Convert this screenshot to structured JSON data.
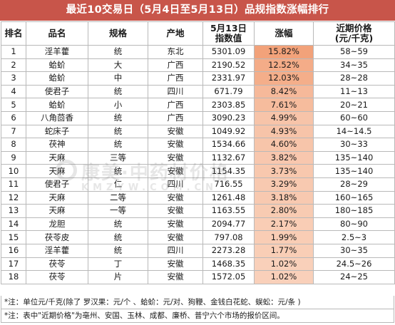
{
  "title": "最近10交易日（5月4日至5月13日）品规指数涨幅排行",
  "columns": {
    "rank": "排名",
    "name": "品名",
    "spec": "规格",
    "origin": "产地",
    "index_line1": "5月13日",
    "index_line2": "指数值",
    "change": "涨幅",
    "price_line1": "近期价格",
    "price_line2": "(元/千克)"
  },
  "rows": [
    {
      "rank": "1",
      "name": "淫羊藿",
      "spec": "统",
      "origin": "东北",
      "index": "5301.09",
      "change": "15.82%",
      "price": "58~59",
      "change_value": 15.82
    },
    {
      "rank": "2",
      "name": "蛤蚧",
      "spec": "大",
      "origin": "广西",
      "index": "2190.52",
      "change": "12.52%",
      "price": "34~35",
      "change_value": 12.52
    },
    {
      "rank": "3",
      "name": "蛤蚧",
      "spec": "中",
      "origin": "广西",
      "index": "2331.97",
      "change": "12.03%",
      "price": "28~28",
      "change_value": 12.03
    },
    {
      "rank": "4",
      "name": "使君子",
      "spec": "统",
      "origin": "四川",
      "index": "671.79",
      "change": "8.42%",
      "price": "11~13",
      "change_value": 8.42
    },
    {
      "rank": "5",
      "name": "蛤蚧",
      "spec": "小",
      "origin": "广西",
      "index": "2303.85",
      "change": "7.61%",
      "price": "20~21",
      "change_value": 7.61
    },
    {
      "rank": "6",
      "name": "八角茴香",
      "spec": "统",
      "origin": "广西",
      "index": "3090.23",
      "change": "4.99%",
      "price": "60~60",
      "change_value": 4.99
    },
    {
      "rank": "7",
      "name": "蛇床子",
      "spec": "统",
      "origin": "安徽",
      "index": "1049.92",
      "change": "4.93%",
      "price": "14~14.5",
      "change_value": 4.93
    },
    {
      "rank": "8",
      "name": "茯神",
      "spec": "统",
      "origin": "安徽",
      "index": "1534.66",
      "change": "4.60%",
      "price": "30~33",
      "change_value": 4.6
    },
    {
      "rank": "9",
      "name": "天麻",
      "spec": "三等",
      "origin": "安徽",
      "index": "1132.67",
      "change": "3.82%",
      "price": "135~140",
      "change_value": 3.82
    },
    {
      "rank": "10",
      "name": "天麻",
      "spec": "统",
      "origin": "安徽",
      "index": "1154.35",
      "change": "3.73%",
      "price": "135~140",
      "change_value": 3.73
    },
    {
      "rank": "11",
      "name": "使君子",
      "spec": "仁",
      "origin": "四川",
      "index": "716.55",
      "change": "3.29%",
      "price": "28~29",
      "change_value": 3.29
    },
    {
      "rank": "12",
      "name": "天麻",
      "spec": "二等",
      "origin": "安徽",
      "index": "1261.48",
      "change": "3.18%",
      "price": "160~165",
      "change_value": 3.18
    },
    {
      "rank": "13",
      "name": "天麻",
      "spec": "一等",
      "origin": "安徽",
      "index": "1163.55",
      "change": "2.80%",
      "price": "180~185",
      "change_value": 2.8
    },
    {
      "rank": "14",
      "name": "龙胆",
      "spec": "统",
      "origin": "安徽",
      "index": "2094.77",
      "change": "2.17%",
      "price": "80~90",
      "change_value": 2.17
    },
    {
      "rank": "15",
      "name": "茯苓皮",
      "spec": "统",
      "origin": "安徽",
      "index": "797.08",
      "change": "1.99%",
      "price": "2.5~3",
      "change_value": 1.99
    },
    {
      "rank": "16",
      "name": "淫羊藿",
      "spec": "统",
      "origin": "四川",
      "index": "2273.28",
      "change": "1.77%",
      "price": "30~35",
      "change_value": 1.77
    },
    {
      "rank": "17",
      "name": "茯苓",
      "spec": "丁",
      "origin": "安徽",
      "index": "1468.35",
      "change": "1.02%",
      "price": "24.5~26",
      "change_value": 1.02
    },
    {
      "rank": "18",
      "name": "茯苓",
      "spec": "片",
      "origin": "安徽",
      "index": "1572.05",
      "change": "1.02%",
      "price": "24~25",
      "change_value": 1.02
    }
  ],
  "notes": [
    "*注：单位元/千克(除了 罗汉果：元/个 、蛤蚧：元/对、狗鞭、金钱白花蛇、蜈蚣：元/条 )",
    "*注：表中\"近期价格\"为亳州、安国、玉林、成都、廉桥、普宁六个市场的报价区间。"
  ],
  "watermark": {
    "cn": "康美·中药材价格",
    "en": "KMZYW.COM.CN"
  },
  "colors": {
    "title_bg": "#c8554a",
    "title_text": "#ffffff",
    "highlight_strong": "#f2a27a",
    "highlight_weak": "#fde9dc",
    "border": "#b9b9b9"
  }
}
